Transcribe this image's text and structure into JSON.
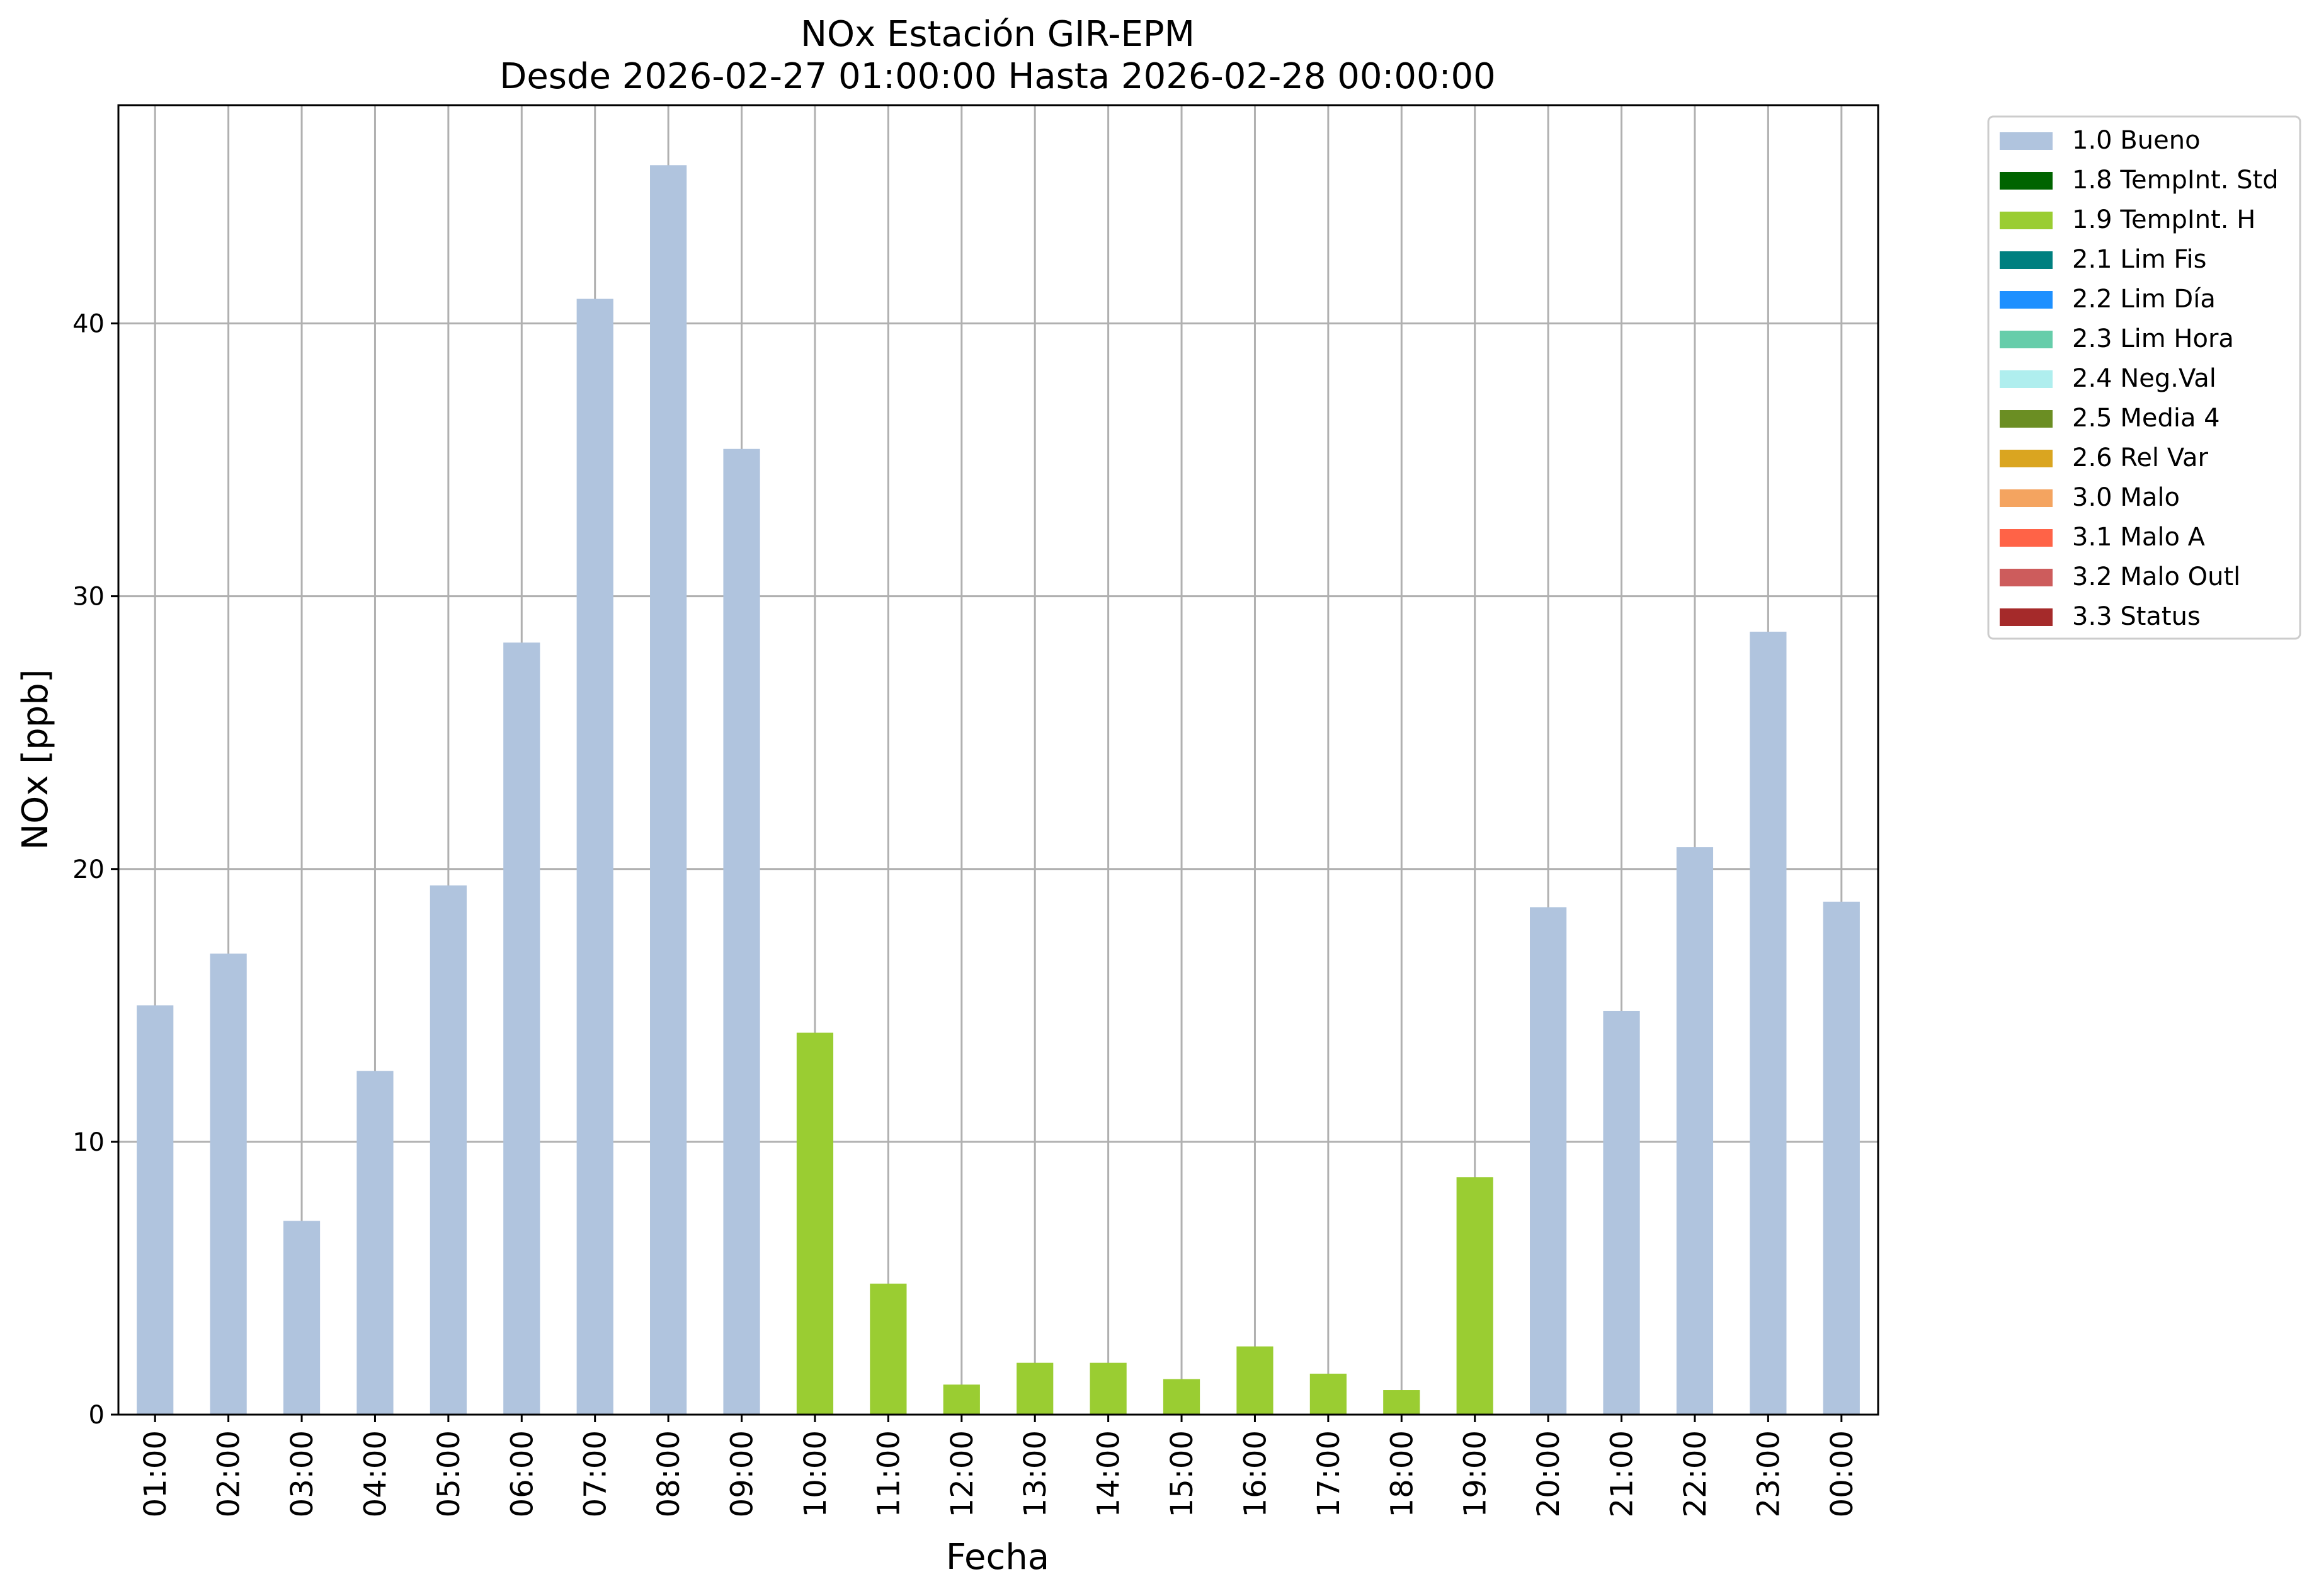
{
  "chart_data": {
    "type": "bar",
    "title": "NOx Estación GIR-EPM",
    "subtitle": "Desde 2026-02-27 01:00:00 Hasta 2026-02-28 00:00:00",
    "xlabel": "Fecha",
    "ylabel": "NOx [ppb]",
    "ylim": [
      0,
      48
    ],
    "yticks": [
      0,
      10,
      20,
      30,
      40
    ],
    "grid": true,
    "legend_position": "outside-right-top",
    "categories": [
      "01:00",
      "02:00",
      "03:00",
      "04:00",
      "05:00",
      "06:00",
      "07:00",
      "08:00",
      "09:00",
      "10:00",
      "11:00",
      "12:00",
      "13:00",
      "14:00",
      "15:00",
      "16:00",
      "17:00",
      "18:00",
      "19:00",
      "20:00",
      "21:00",
      "22:00",
      "23:00",
      "00:00"
    ],
    "values": [
      15.0,
      16.9,
      7.1,
      12.6,
      19.4,
      28.3,
      40.9,
      45.8,
      35.4,
      14.0,
      4.8,
      1.1,
      1.9,
      1.9,
      1.3,
      2.5,
      1.5,
      0.9,
      8.7,
      18.6,
      14.8,
      20.8,
      28.7,
      18.8
    ],
    "flags": [
      "1.0 Bueno",
      "1.0 Bueno",
      "1.0 Bueno",
      "1.0 Bueno",
      "1.0 Bueno",
      "1.0 Bueno",
      "1.0 Bueno",
      "1.0 Bueno",
      "1.0 Bueno",
      "1.9 TempInt. H",
      "1.9 TempInt. H",
      "1.9 TempInt. H",
      "1.9 TempInt. H",
      "1.9 TempInt. H",
      "1.9 TempInt. H",
      "1.9 TempInt. H",
      "1.9 TempInt. H",
      "1.9 TempInt. H",
      "1.9 TempInt. H",
      "1.0 Bueno",
      "1.0 Bueno",
      "1.0 Bueno",
      "1.0 Bueno",
      "1.0 Bueno"
    ],
    "legend": [
      {
        "label": "1.0 Bueno",
        "color": "#b0c4de"
      },
      {
        "label": "1.8 TempInt. Std",
        "color": "#006400"
      },
      {
        "label": "1.9 TempInt. H",
        "color": "#9acd32"
      },
      {
        "label": "2.1 Lim Fis",
        "color": "#008080"
      },
      {
        "label": "2.2 Lim Día",
        "color": "#1e90ff"
      },
      {
        "label": "2.3 Lim Hora",
        "color": "#66cdaa"
      },
      {
        "label": "2.4 Neg.Val",
        "color": "#afeeee"
      },
      {
        "label": "2.5 Media 4",
        "color": "#6b8e23"
      },
      {
        "label": "2.6 Rel Var",
        "color": "#daa520"
      },
      {
        "label": "3.0 Malo",
        "color": "#f4a460"
      },
      {
        "label": "3.1 Malo A",
        "color": "#ff6347"
      },
      {
        "label": "3.2 Malo Outl",
        "color": "#cd5c5c"
      },
      {
        "label": "3.3 Status",
        "color": "#a52a2a"
      }
    ]
  }
}
